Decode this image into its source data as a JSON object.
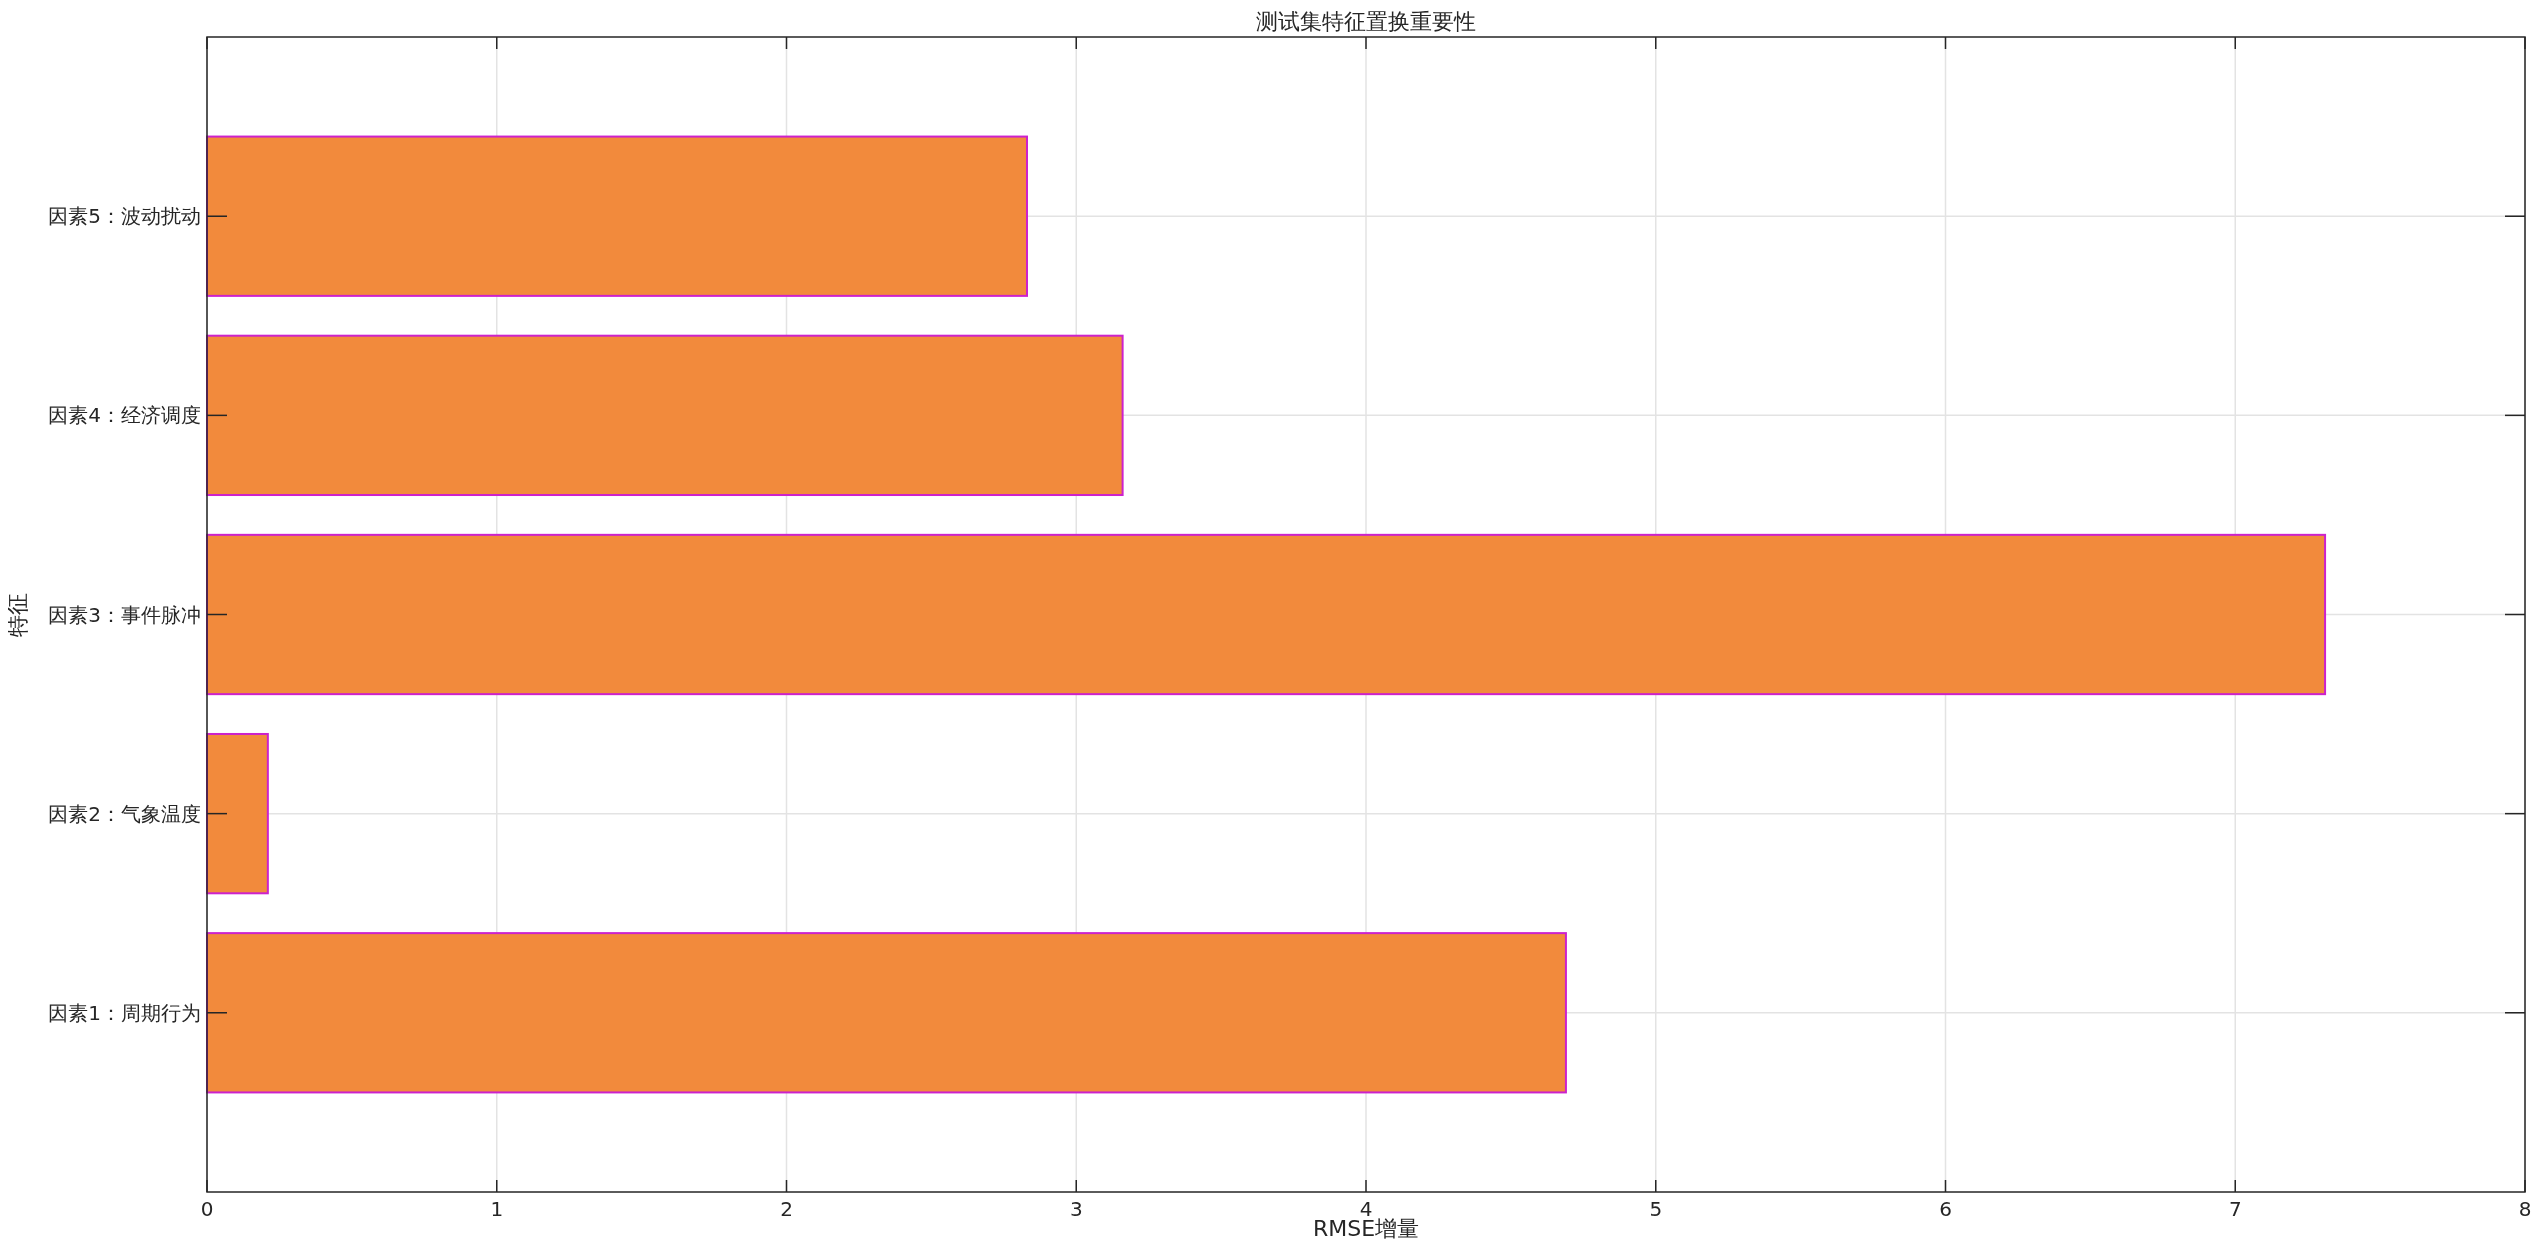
{
  "chart_data": {
    "type": "bar",
    "orientation": "horizontal",
    "title": "测试集特征置换重要性",
    "xlabel": "RMSE增量",
    "ylabel": "特征",
    "categories": [
      "因素5：波动扰动",
      "因素4：经济调度",
      "因素3：事件脉冲",
      "因素2：气象温度",
      "因素1：周期行为"
    ],
    "values": [
      2.83,
      3.16,
      7.31,
      0.21,
      4.69
    ],
    "color": "#f28a3c",
    "xlim": [
      0,
      8
    ],
    "xticks": [
      0,
      1,
      2,
      3,
      4,
      5,
      6,
      7,
      8
    ],
    "grid": true
  }
}
